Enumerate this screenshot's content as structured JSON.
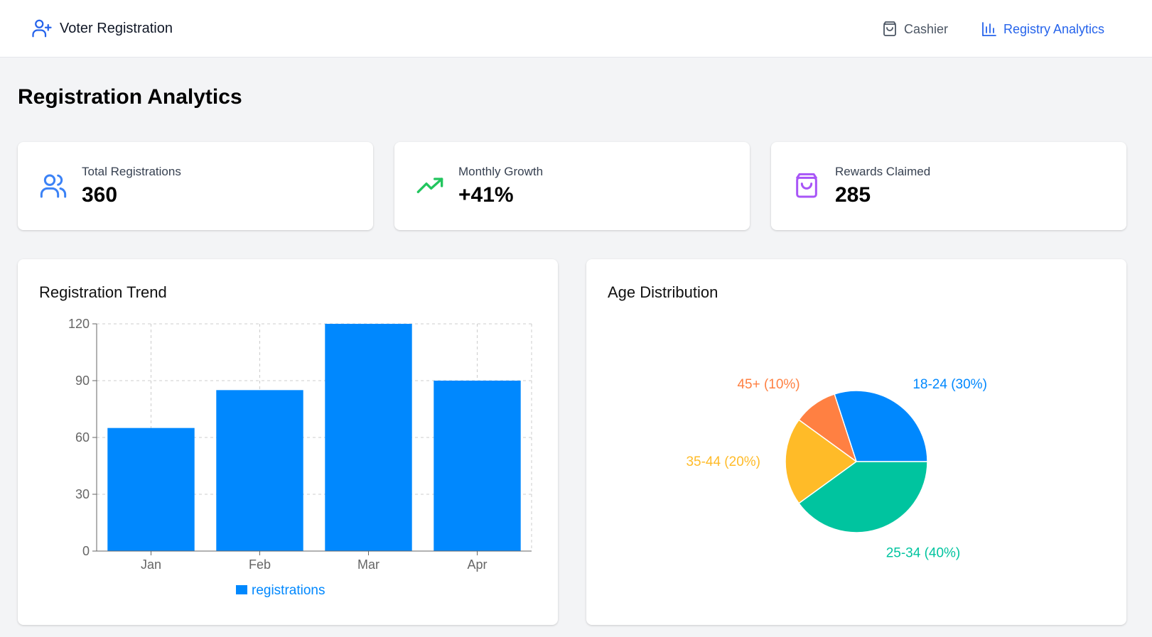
{
  "nav": {
    "brand": "Voter Registration",
    "links": [
      {
        "label": "Cashier",
        "active": false
      },
      {
        "label": "Registry Analytics",
        "active": true
      }
    ]
  },
  "page": {
    "title": "Registration Analytics"
  },
  "stats": [
    {
      "label": "Total Registrations",
      "value": "360",
      "icon": "users-icon",
      "color": "#3b82f6"
    },
    {
      "label": "Monthly Growth",
      "value": "+41%",
      "icon": "trending-up-icon",
      "color": "#22c55e"
    },
    {
      "label": "Rewards Claimed",
      "value": "285",
      "icon": "shopping-bag-icon",
      "color": "#a855f7"
    }
  ],
  "panels": {
    "trend_title": "Registration Trend",
    "age_title": "Age Distribution"
  },
  "chart_data": [
    {
      "type": "bar",
      "title": "Registration Trend",
      "categories": [
        "Jan",
        "Feb",
        "Mar",
        "Apr"
      ],
      "series": [
        {
          "name": "registrations",
          "values": [
            65,
            85,
            120,
            90
          ],
          "color": "#0088fe"
        }
      ],
      "ylim": [
        0,
        120
      ],
      "yticks": [
        0,
        30,
        60,
        90,
        120
      ],
      "grid": true,
      "legend": "bottom"
    },
    {
      "type": "pie",
      "title": "Age Distribution",
      "slices": [
        {
          "label": "18-24",
          "value": 30,
          "text": "18-24 (30%)",
          "color": "#0088fe"
        },
        {
          "label": "45+",
          "value": 10,
          "text": "45+ (10%)",
          "color": "#ff8042"
        },
        {
          "label": "35-44",
          "value": 20,
          "text": "35-44 (20%)",
          "color": "#ffbb28"
        },
        {
          "label": "25-34",
          "value": 40,
          "text": "25-34 (40%)",
          "color": "#00c49f"
        }
      ]
    }
  ]
}
